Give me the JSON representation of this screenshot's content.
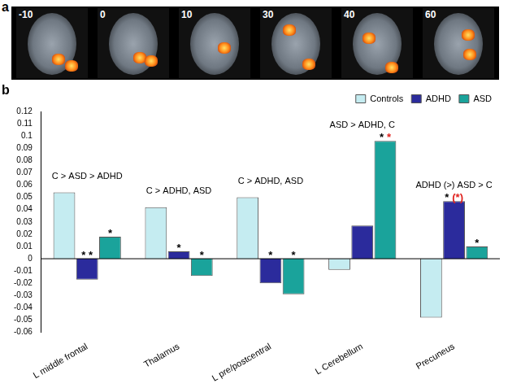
{
  "figure": {
    "panel_a": {
      "label": "a",
      "slices": [
        -10,
        0,
        10,
        30,
        40,
        60
      ]
    },
    "panel_b": {
      "label": "b"
    }
  },
  "chart_data": {
    "type": "bar",
    "categories": [
      "L middle frontal",
      "Thalamus",
      "L pre/postcentral",
      "L Cerebellum",
      "Precuneus"
    ],
    "series": [
      {
        "name": "Controls",
        "color": "#c5ecf1",
        "values": [
          0.054,
          0.042,
          0.05,
          -0.009,
          -0.048
        ]
      },
      {
        "name": "ADHD",
        "color": "#2b2b9c",
        "values": [
          -0.017,
          0.006,
          -0.02,
          0.027,
          0.047
        ]
      },
      {
        "name": "ASD",
        "color": "#1aa39b",
        "values": [
          0.018,
          -0.014,
          -0.029,
          0.096,
          0.01
        ]
      }
    ],
    "ylim": [
      -0.06,
      0.12
    ],
    "yticks": [
      -0.06,
      -0.05,
      -0.04,
      -0.03,
      -0.02,
      -0.01,
      0,
      0.01,
      0.02,
      0.03,
      0.04,
      0.05,
      0.06,
      0.07,
      0.08,
      0.09,
      0.1,
      0.11,
      0.12
    ],
    "grid": false,
    "legend": "top-right",
    "group_labels": [
      "C > ASD > ADHD",
      "C > ADHD, ASD",
      "C > ADHD, ASD",
      "ASD > ADHD, C",
      "ADHD (>) ASD > C"
    ],
    "annotations": [
      {
        "category": "L middle frontal",
        "series": "ADHD",
        "text": "* *",
        "color": "#000000"
      },
      {
        "category": "L middle frontal",
        "series": "ASD",
        "text": "*",
        "color": "#000000"
      },
      {
        "category": "Thalamus",
        "series": "ADHD",
        "text": "*",
        "color": "#000000"
      },
      {
        "category": "Thalamus",
        "series": "ASD",
        "text": "*",
        "color": "#000000"
      },
      {
        "category": "L pre/postcentral",
        "series": "ADHD",
        "text": "*",
        "color": "#000000"
      },
      {
        "category": "L pre/postcentral",
        "series": "ASD",
        "text": "*",
        "color": "#000000"
      },
      {
        "category": "L Cerebellum",
        "series": "ASD",
        "text": "*",
        "color": "#000000"
      },
      {
        "category": "L Cerebellum",
        "series": "ASD",
        "text": "*",
        "color": "#e0201c"
      },
      {
        "category": "Precuneus",
        "series": "ADHD",
        "text": "*",
        "color": "#000000"
      },
      {
        "category": "Precuneus",
        "series": "ADHD",
        "text": "(*)",
        "color": "#e0201c"
      },
      {
        "category": "Precuneus",
        "series": "ASD",
        "text": "*",
        "color": "#000000"
      }
    ]
  }
}
